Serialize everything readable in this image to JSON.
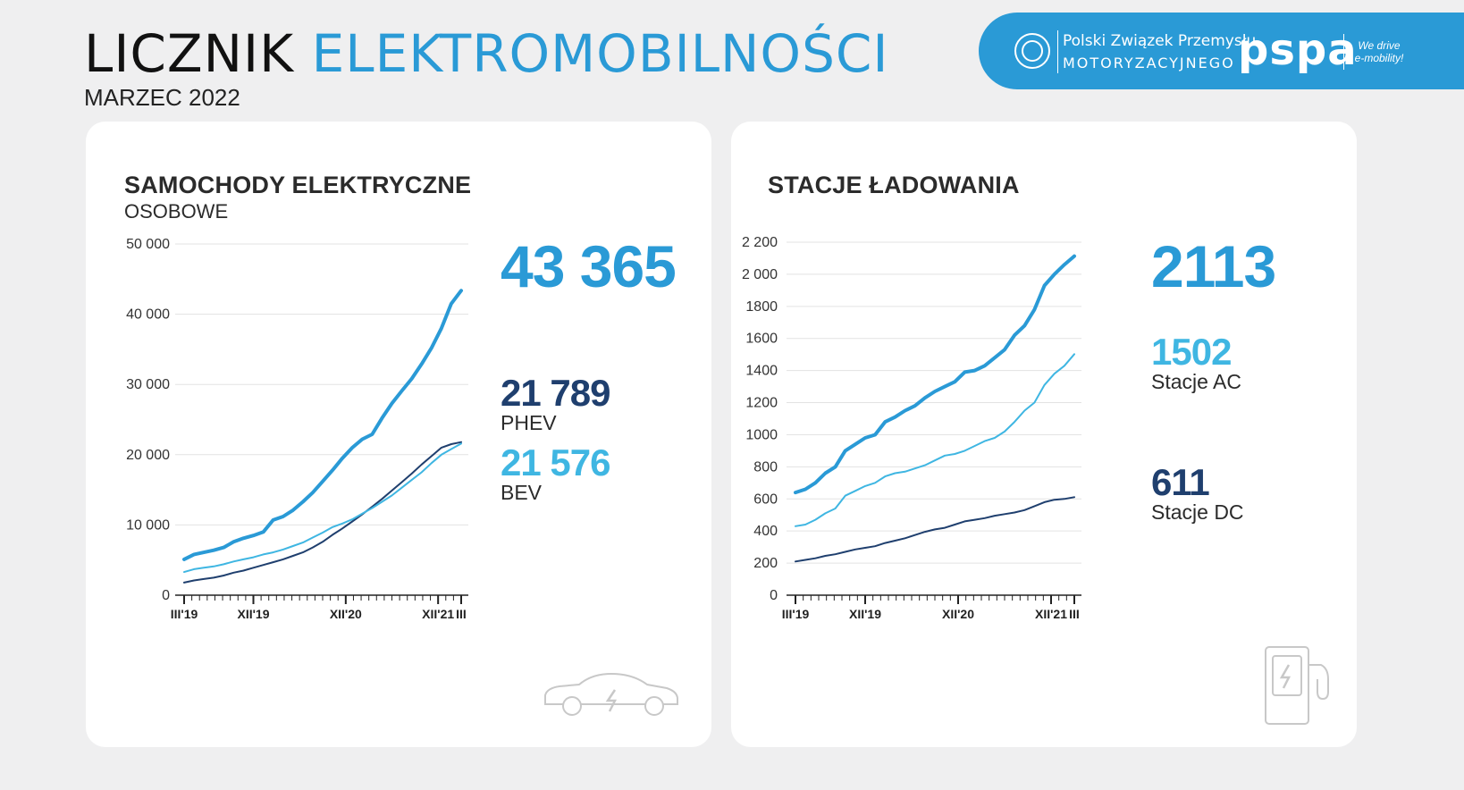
{
  "header": {
    "title_part1": "LICZNIK",
    "title_part2": "ELEKTROMOBILNOŚCI",
    "subtitle": "MARZEC 2022"
  },
  "logos": {
    "pzpm_line1": "Polski Związek Przemysłu",
    "pzpm_line2": "MOTORYZACYJNEGO",
    "pspa": "pspa",
    "pspa_tagline": "We drive e-mobility!"
  },
  "colors": {
    "accent": "#2a9ad6",
    "dark_series": "#1f3f6e",
    "light_series": "#3fb6e2"
  },
  "cars": {
    "title": "SAMOCHODY ELEKTRYCZNE",
    "subtitle": "OSOBOWE",
    "total": "43 365",
    "phev_value": "21 789",
    "phev_label": "PHEV",
    "bev_value": "21 576",
    "bev_label": "BEV",
    "icon": "electric-car-icon"
  },
  "stations": {
    "title": "STACJE ŁADOWANIA",
    "total": "2113",
    "ac_value": "1502",
    "ac_label": "Stacje AC",
    "dc_value": "611",
    "dc_label": "Stacje DC",
    "icon": "charging-station-icon"
  },
  "chart_data": [
    {
      "type": "line",
      "x_labels": [
        "III'19",
        "XII'19",
        "XII'20",
        "XII'21",
        "III"
      ],
      "x_label_index": [
        0,
        9,
        21,
        33,
        36
      ],
      "ylim": [
        0,
        50000
      ],
      "yticks": [
        0,
        10000,
        20000,
        30000,
        40000,
        50000
      ],
      "ytick_labels": [
        "0",
        "10 000",
        "20 000",
        "30 000",
        "40 000",
        "50 000"
      ],
      "grid": true,
      "series": [
        {
          "role": "total",
          "color": "#2a9ad6",
          "width": 4,
          "values": [
            5100,
            5800,
            6100,
            6400,
            6800,
            7600,
            8100,
            8500,
            9000,
            10700,
            11200,
            12100,
            13300,
            14600,
            16200,
            17800,
            19500,
            21000,
            22200,
            22900,
            25200,
            27300,
            29100,
            30800,
            32900,
            35200,
            38000,
            41500,
            43365
          ]
        },
        {
          "role": "phev",
          "color": "#1f3f6e",
          "width": 2,
          "values": [
            1800,
            2100,
            2300,
            2500,
            2800,
            3200,
            3500,
            3900,
            4300,
            4700,
            5100,
            5600,
            6100,
            6800,
            7600,
            8600,
            9500,
            10500,
            11500,
            12600,
            13700,
            14900,
            16100,
            17300,
            18600,
            19800,
            21000,
            21500,
            21789
          ]
        },
        {
          "role": "bev",
          "color": "#3fb6e2",
          "width": 2,
          "values": [
            3300,
            3700,
            3900,
            4100,
            4400,
            4800,
            5100,
            5400,
            5800,
            6100,
            6500,
            7000,
            7500,
            8200,
            8900,
            9700,
            10200,
            10800,
            11600,
            12400,
            13300,
            14200,
            15300,
            16400,
            17500,
            18800,
            20000,
            20800,
            21576
          ]
        }
      ]
    },
    {
      "type": "line",
      "x_labels": [
        "III'19",
        "XII'19",
        "XII'20",
        "XII'21",
        "III"
      ],
      "x_label_index": [
        0,
        9,
        21,
        33,
        36
      ],
      "ylim": [
        0,
        2200
      ],
      "yticks": [
        0,
        200,
        400,
        600,
        800,
        1000,
        1200,
        1400,
        1600,
        1800,
        2000,
        2200
      ],
      "ytick_labels": [
        "0",
        "200",
        "400",
        "600",
        "800",
        "1000",
        "1200",
        "1400",
        "1600",
        "1800",
        "2 000",
        "2 200"
      ],
      "grid": true,
      "series": [
        {
          "role": "total",
          "color": "#2a9ad6",
          "width": 4,
          "values": [
            640,
            660,
            700,
            760,
            800,
            900,
            940,
            980,
            1000,
            1080,
            1110,
            1150,
            1180,
            1230,
            1270,
            1300,
            1330,
            1390,
            1400,
            1430,
            1480,
            1530,
            1620,
            1680,
            1780,
            1930,
            2000,
            2060,
            2113
          ]
        },
        {
          "role": "ac",
          "color": "#3fb6e2",
          "width": 2,
          "values": [
            430,
            440,
            470,
            510,
            540,
            620,
            650,
            680,
            700,
            740,
            760,
            770,
            790,
            810,
            840,
            870,
            880,
            900,
            930,
            960,
            980,
            1020,
            1080,
            1150,
            1200,
            1310,
            1380,
            1430,
            1502
          ]
        },
        {
          "role": "dc",
          "color": "#1f3f6e",
          "width": 2,
          "values": [
            210,
            220,
            230,
            245,
            255,
            270,
            285,
            295,
            305,
            325,
            340,
            355,
            375,
            395,
            410,
            420,
            440,
            460,
            470,
            480,
            495,
            505,
            515,
            530,
            555,
            580,
            595,
            600,
            611
          ]
        }
      ]
    }
  ]
}
